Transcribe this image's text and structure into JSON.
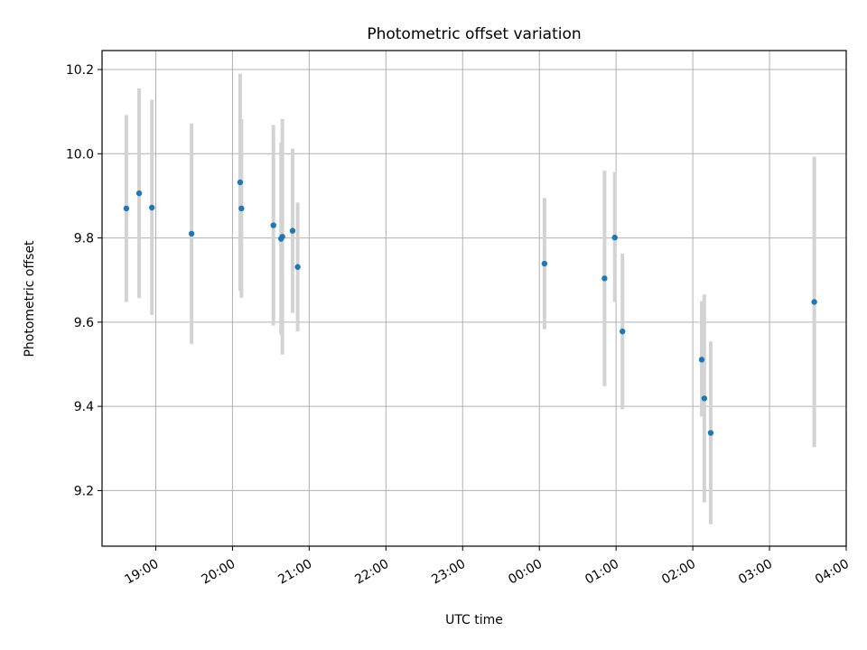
{
  "chart_data": {
    "type": "scatter",
    "title": "Photometric offset variation",
    "xlabel": "UTC time",
    "ylabel": "Photometric offset",
    "x_tick_labels": [
      "19:00",
      "20:00",
      "21:00",
      "22:00",
      "23:00",
      "00:00",
      "01:00",
      "02:00",
      "03:00",
      "04:00"
    ],
    "y_ticks": [
      9.2,
      9.4,
      9.6,
      9.8,
      10.0,
      10.2
    ],
    "y_tick_labels": [
      "9.2",
      "9.4",
      "9.6",
      "9.8",
      "10.0",
      "10.2"
    ],
    "xlim": [
      "18:18",
      "04:00"
    ],
    "ylim": [
      9.068,
      10.245
    ],
    "grid": true,
    "point_color": "#1f77b4",
    "errorbar_color": "#d3d3d3",
    "points": [
      {
        "x": "18:37",
        "y": 9.87,
        "ylow": 9.648,
        "yhigh": 10.092
      },
      {
        "x": "18:47",
        "y": 9.906,
        "ylow": 9.657,
        "yhigh": 10.155
      },
      {
        "x": "18:57",
        "y": 9.872,
        "ylow": 9.617,
        "yhigh": 10.128
      },
      {
        "x": "19:28",
        "y": 9.81,
        "ylow": 9.548,
        "yhigh": 10.072
      },
      {
        "x": "20:06",
        "y": 9.932,
        "ylow": 9.674,
        "yhigh": 10.19
      },
      {
        "x": "20:07",
        "y": 9.87,
        "ylow": 9.658,
        "yhigh": 10.082
      },
      {
        "x": "20:32",
        "y": 9.83,
        "ylow": 9.592,
        "yhigh": 10.068
      },
      {
        "x": "20:38",
        "y": 9.798,
        "ylow": 9.57,
        "yhigh": 10.026
      },
      {
        "x": "20:39",
        "y": 9.803,
        "ylow": 9.523,
        "yhigh": 10.083
      },
      {
        "x": "20:47",
        "y": 9.817,
        "ylow": 9.622,
        "yhigh": 10.012
      },
      {
        "x": "20:51",
        "y": 9.731,
        "ylow": 9.578,
        "yhigh": 9.884
      },
      {
        "x": "00:04",
        "y": 9.739,
        "ylow": 9.583,
        "yhigh": 9.895
      },
      {
        "x": "00:51",
        "y": 9.704,
        "ylow": 9.448,
        "yhigh": 9.96
      },
      {
        "x": "00:59",
        "y": 9.801,
        "ylow": 9.648,
        "yhigh": 9.956
      },
      {
        "x": "01:05",
        "y": 9.578,
        "ylow": 9.393,
        "yhigh": 9.763
      },
      {
        "x": "02:07",
        "y": 9.511,
        "ylow": 9.376,
        "yhigh": 9.65
      },
      {
        "x": "02:09",
        "y": 9.419,
        "ylow": 9.172,
        "yhigh": 9.666
      },
      {
        "x": "02:14",
        "y": 9.337,
        "ylow": 9.12,
        "yhigh": 9.554
      },
      {
        "x": "03:35",
        "y": 9.648,
        "ylow": 9.303,
        "yhigh": 9.993
      }
    ]
  }
}
